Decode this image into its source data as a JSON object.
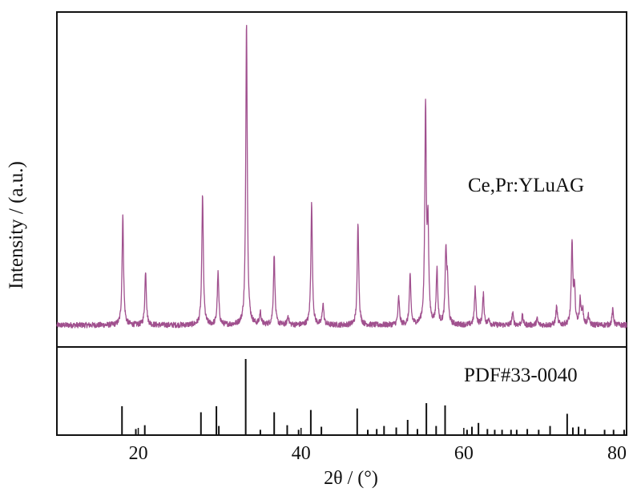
{
  "chart_data": [
    {
      "type": "line",
      "title": "",
      "xlabel": "2θ / (°)",
      "ylabel": "Intensity / (a.u.)",
      "xlim": [
        10,
        80
      ],
      "ylim": [
        0,
        1.07
      ],
      "y_ticks_shown": false,
      "grid": false,
      "color": "#a0508e",
      "annotation": "Ce,Pr:YLuAG",
      "series": [
        {
          "name": "Ce,Pr:YLuAG",
          "baseline": 0.04,
          "peaks": [
            {
              "x": 18.1,
              "y": 0.36
            },
            {
              "x": 20.9,
              "y": 0.18
            },
            {
              "x": 27.9,
              "y": 0.43
            },
            {
              "x": 29.8,
              "y": 0.17
            },
            {
              "x": 33.3,
              "y": 1.0
            },
            {
              "x": 35.0,
              "y": 0.04
            },
            {
              "x": 36.7,
              "y": 0.23
            },
            {
              "x": 38.4,
              "y": 0.03
            },
            {
              "x": 41.3,
              "y": 0.4
            },
            {
              "x": 42.7,
              "y": 0.07
            },
            {
              "x": 47.0,
              "y": 0.34
            },
            {
              "x": 52.0,
              "y": 0.09
            },
            {
              "x": 53.4,
              "y": 0.16
            },
            {
              "x": 55.3,
              "y": 0.71
            },
            {
              "x": 55.6,
              "y": 0.3
            },
            {
              "x": 56.7,
              "y": 0.18
            },
            {
              "x": 57.8,
              "y": 0.24
            },
            {
              "x": 58.0,
              "y": 0.12
            },
            {
              "x": 61.4,
              "y": 0.12
            },
            {
              "x": 62.4,
              "y": 0.1
            },
            {
              "x": 63.1,
              "y": 0.02
            },
            {
              "x": 66.0,
              "y": 0.04
            },
            {
              "x": 67.2,
              "y": 0.03
            },
            {
              "x": 69.0,
              "y": 0.02
            },
            {
              "x": 71.4,
              "y": 0.06
            },
            {
              "x": 73.3,
              "y": 0.27
            },
            {
              "x": 73.6,
              "y": 0.11
            },
            {
              "x": 74.3,
              "y": 0.08
            },
            {
              "x": 74.6,
              "y": 0.05
            },
            {
              "x": 75.3,
              "y": 0.03
            },
            {
              "x": 78.3,
              "y": 0.05
            }
          ]
        }
      ]
    },
    {
      "type": "bar",
      "title": "",
      "xlabel": "2θ / (°)",
      "ylabel": "",
      "annotation": "PDF#33-0040",
      "xlim": [
        10,
        80
      ],
      "ylim": [
        0,
        100
      ],
      "x_ticks": [
        20,
        40,
        60,
        80
      ],
      "x": [
        18.0,
        19.7,
        20.8,
        27.7,
        29.6,
        29.9,
        33.2,
        35.0,
        36.7,
        38.3,
        39.7,
        41.2,
        42.5,
        46.9,
        48.2,
        49.3,
        50.2,
        51.7,
        53.1,
        54.3,
        55.4,
        56.6,
        57.7,
        60.4,
        61.0,
        61.8,
        62.9,
        63.8,
        64.7,
        65.8,
        66.5,
        67.8,
        69.2,
        70.6,
        72.7,
        73.4,
        74.1,
        74.9,
        77.3,
        78.4,
        79.7
      ],
      "values": [
        38,
        8,
        13,
        30,
        38,
        12,
        100,
        7,
        30,
        13,
        7,
        33,
        11,
        35,
        7,
        8,
        12,
        10,
        20,
        8,
        42,
        12,
        39,
        7,
        11,
        16,
        8,
        7,
        7,
        7,
        7,
        8,
        7,
        12,
        28,
        10,
        11,
        8,
        7,
        7,
        7
      ]
    }
  ]
}
